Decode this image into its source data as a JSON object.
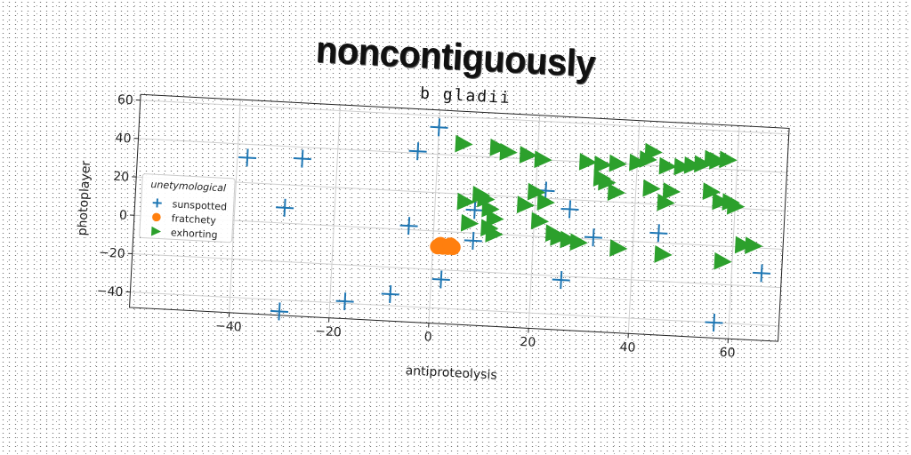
{
  "headline": "noncontiguously",
  "chart_data": {
    "type": "scatter",
    "title": "b gladii",
    "xlabel": "antiproteolysis",
    "ylabel": "photoplayer",
    "xlim": [
      -60,
      70
    ],
    "ylim": [
      -48,
      63
    ],
    "xticks": [
      -40,
      -20,
      0,
      20,
      40,
      60
    ],
    "yticks": [
      -40,
      -20,
      0,
      20,
      40,
      60
    ],
    "grid": true,
    "legend": {
      "title": "unetymological",
      "placement": "center-left"
    },
    "series": [
      {
        "name": "sunspotted",
        "marker": "plus",
        "color": "#1f77b4",
        "points": [
          [
            0,
            54
          ],
          [
            -4,
            41
          ],
          [
            -38,
            33
          ],
          [
            -27,
            34
          ],
          [
            -30,
            8
          ],
          [
            -5,
            2
          ],
          [
            8,
            12
          ],
          [
            8,
            -4
          ],
          [
            22,
            24
          ],
          [
            27,
            15
          ],
          [
            32,
            1
          ],
          [
            45,
            5
          ],
          [
            26,
            -22
          ],
          [
            2,
            -25
          ],
          [
            -8,
            -34
          ],
          [
            -17,
            -39
          ],
          [
            -30,
            -46
          ],
          [
            57,
            -40
          ],
          [
            66,
            -13
          ]
        ]
      },
      {
        "name": "fratchety",
        "marker": "circle",
        "color": "#ff7f0e",
        "points": [
          [
            1,
            -8
          ],
          [
            2,
            -8
          ],
          [
            3,
            -8
          ],
          [
            4,
            -8
          ],
          [
            1.5,
            -7
          ],
          [
            3.5,
            -7
          ]
        ]
      },
      {
        "name": "exhorting",
        "marker": "triangle-right",
        "color": "#2ca02c",
        "points": [
          [
            5,
            46
          ],
          [
            12,
            45
          ],
          [
            14,
            43
          ],
          [
            18,
            42
          ],
          [
            21,
            40
          ],
          [
            30,
            40
          ],
          [
            33,
            39
          ],
          [
            36,
            40
          ],
          [
            40,
            41
          ],
          [
            42,
            43
          ],
          [
            43,
            47
          ],
          [
            46,
            40
          ],
          [
            49,
            40
          ],
          [
            51,
            41
          ],
          [
            53,
            42
          ],
          [
            55,
            45
          ],
          [
            56,
            44
          ],
          [
            58,
            45
          ],
          [
            33,
            32
          ],
          [
            34,
            30
          ],
          [
            36,
            25
          ],
          [
            43,
            28
          ],
          [
            46,
            21
          ],
          [
            47,
            27
          ],
          [
            55,
            28
          ],
          [
            57,
            23
          ],
          [
            59,
            23
          ],
          [
            60,
            21
          ],
          [
            9,
            20
          ],
          [
            10,
            18
          ],
          [
            20,
            23
          ],
          [
            22,
            18
          ],
          [
            18,
            16
          ],
          [
            6,
            16
          ],
          [
            11,
            13
          ],
          [
            12,
            8
          ],
          [
            21,
            8
          ],
          [
            24,
            2
          ],
          [
            25,
            0
          ],
          [
            27,
            -1
          ],
          [
            29,
            -2
          ],
          [
            37,
            -4
          ],
          [
            46,
            -6
          ],
          [
            58,
            -8
          ],
          [
            62,
            1
          ],
          [
            64,
            1
          ],
          [
            7,
            5
          ],
          [
            11,
            3
          ],
          [
            12,
            0
          ]
        ]
      }
    ]
  }
}
